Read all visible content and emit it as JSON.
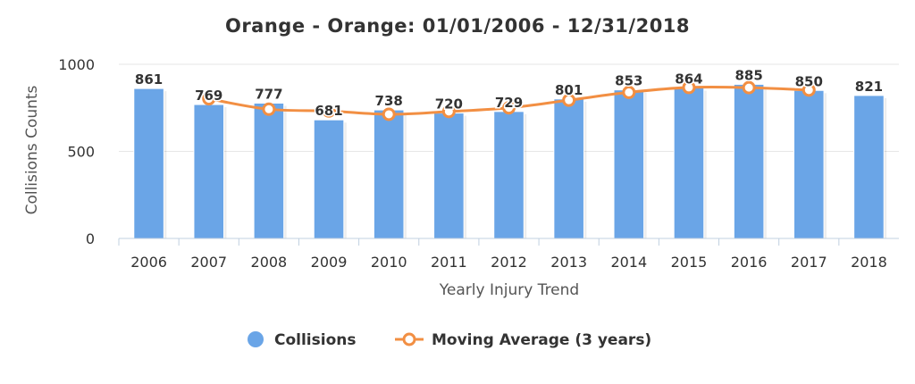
{
  "chart_data": {
    "type": "bar",
    "title": "Orange - Orange: 01/01/2006 - 12/31/2018",
    "xlabel": "Yearly Injury Trend",
    "ylabel": "Collisions Counts",
    "ylim": [
      0,
      1000
    ],
    "yticks": [
      0,
      500,
      1000
    ],
    "categories": [
      "2006",
      "2007",
      "2008",
      "2009",
      "2010",
      "2011",
      "2012",
      "2013",
      "2014",
      "2015",
      "2016",
      "2017",
      "2018"
    ],
    "series": [
      {
        "name": "Collisions",
        "type": "bar",
        "color": "#6aa5e7",
        "values": [
          861,
          769,
          777,
          681,
          738,
          720,
          729,
          801,
          853,
          864,
          885,
          850,
          821
        ]
      },
      {
        "name": "Moving Average (3 years)",
        "type": "line",
        "color": "#f28f43",
        "values": [
          null,
          802,
          742,
          732,
          713,
          729,
          750,
          794,
          839,
          867,
          866,
          852,
          null
        ]
      }
    ],
    "grid": "horizontal",
    "legend": "bottom-center"
  }
}
